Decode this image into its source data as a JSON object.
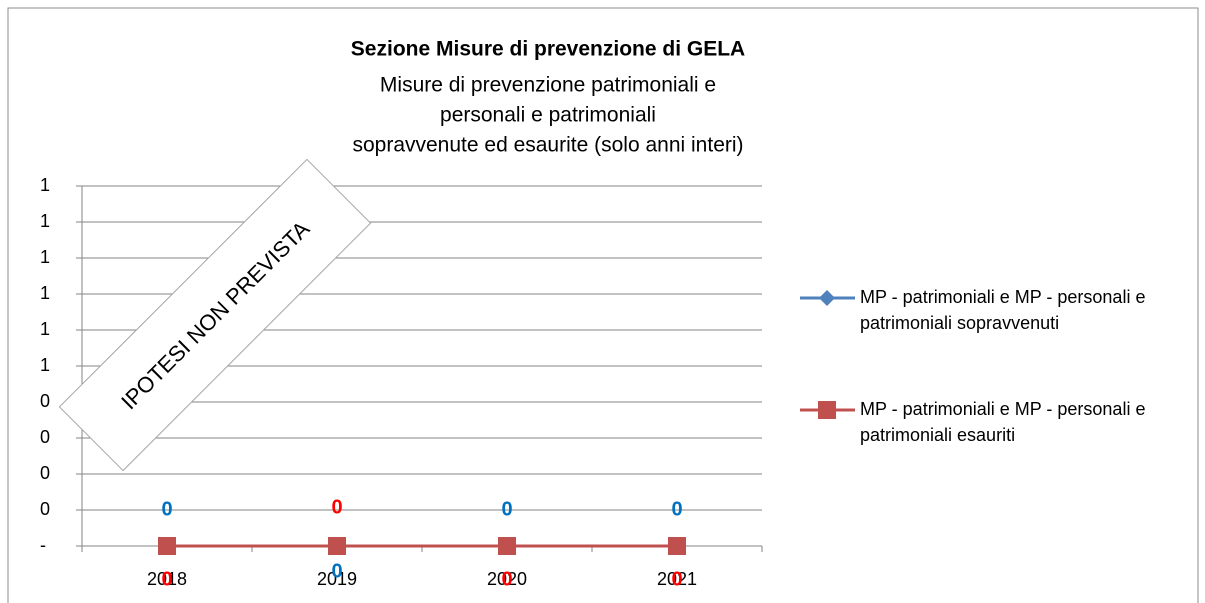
{
  "chart_data": {
    "type": "line",
    "title": "Sezione Misure di prevenzione di GELA",
    "subtitle": [
      "Misure di prevenzione patrimoniali e",
      "personali e patrimoniali",
      "sopravvenute ed esaurite (solo anni interi)"
    ],
    "annotation": "IPOTESI NON PREVISTA",
    "categories": [
      "2018",
      "2019",
      "2020",
      "2021"
    ],
    "series": [
      {
        "name": "MP - patrimoniali e MP - personali e patrimoniali sopravvenuti",
        "color": "#4f81bd",
        "label_color": "#0070c0",
        "marker": "diamond",
        "values": [
          0,
          0,
          0,
          0
        ]
      },
      {
        "name": "MP - patrimoniali e MP - personali e patrimoniali esauriti",
        "color": "#c0504d",
        "label_color": "#ff0000",
        "marker": "square",
        "values": [
          0,
          0,
          0,
          0
        ]
      }
    ],
    "ylim": [
      0,
      1
    ],
    "yticks": [
      {
        "value": 0,
        "label": "-"
      },
      {
        "value": 0.1,
        "label": "0"
      },
      {
        "value": 0.2,
        "label": "0"
      },
      {
        "value": 0.3,
        "label": "0"
      },
      {
        "value": 0.4,
        "label": "0"
      },
      {
        "value": 0.5,
        "label": "1"
      },
      {
        "value": 0.6,
        "label": "1"
      },
      {
        "value": 0.7,
        "label": "1"
      },
      {
        "value": 0.8,
        "label": "1"
      },
      {
        "value": 0.9,
        "label": "1"
      },
      1
    ],
    "grid": true,
    "legend": "right"
  }
}
